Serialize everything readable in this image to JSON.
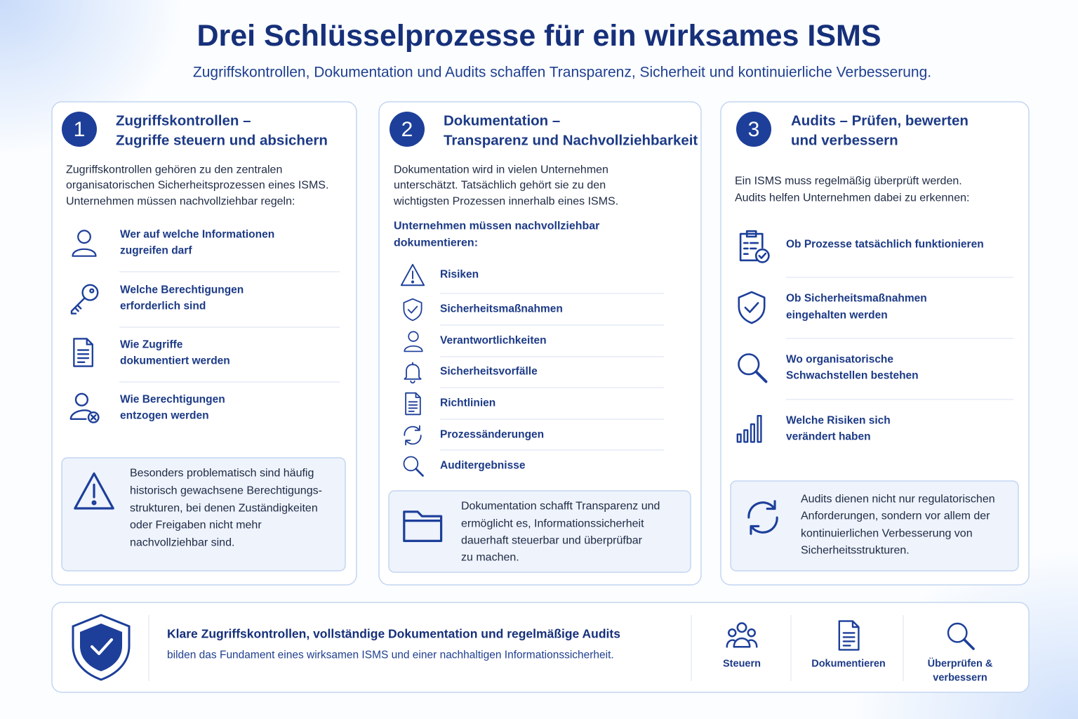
{
  "header": {
    "title": "Drei Schlüsselprozesse für ein wirksames ISMS",
    "subtitle": "Zugriffskontrollen, Dokumentation und Audits schaffen Transparenz, Sicherheit und kontinuierliche Verbesserung."
  },
  "columns": [
    {
      "number": "1",
      "title": [
        "Zugriffskontrollen –",
        "Zugriffe steuern und absichern"
      ],
      "intro": [
        "Zugriffskontrollen gehören zu den zentralen",
        "organisatorischen Sicherheitsprozessen eines ISMS.",
        "Unternehmen müssen nachvollziehbar regeln:"
      ],
      "items": [
        [
          "Wer auf welche Informationen",
          "zugreifen darf"
        ],
        [
          "Welche Berechtigungen",
          "erforderlich sind"
        ],
        [
          "Wie Zugriffe",
          "dokumentiert werden"
        ],
        [
          "Wie Berechtigungen",
          "entzogen werden"
        ]
      ],
      "note": [
        "Besonders problematisch sind häufig",
        "historisch gewachsene Berechtigungs-",
        "strukturen, bei denen Zuständigkeiten",
        "oder Freigaben nicht mehr",
        "nachvollziehbar sind."
      ]
    },
    {
      "number": "2",
      "title": [
        "Dokumentation –",
        "Transparenz und Nachvollziehbarkeit"
      ],
      "intro": [
        "Dokumentation wird in vielen Unternehmen",
        "unterschätzt. Tatsächlich gehört sie zu den",
        "wichtigsten Prozessen innerhalb eines ISMS."
      ],
      "subheading": [
        "Unternehmen müssen nachvollziehbar",
        "dokumentieren:"
      ],
      "items": [
        [
          "Risiken"
        ],
        [
          "Sicherheitsmaßnahmen"
        ],
        [
          "Verantwortlichkeiten"
        ],
        [
          "Sicherheitsvorfälle"
        ],
        [
          "Richtlinien"
        ],
        [
          "Prozessänderungen"
        ],
        [
          "Auditergebnisse"
        ]
      ],
      "note": [
        "Dokumentation schafft Transparenz und",
        "ermöglicht es, Informationssicherheit",
        "dauerhaft steuerbar und überprüfbar",
        "zu machen."
      ]
    },
    {
      "number": "3",
      "title": [
        "Audits – Prüfen, bewerten",
        "und verbessern"
      ],
      "intro": [
        "Ein ISMS muss regelmäßig überprüft werden.",
        "Audits helfen Unternehmen dabei zu erkennen:"
      ],
      "items": [
        [
          "Ob Prozesse tatsächlich funktionieren"
        ],
        [
          "Ob Sicherheitsmaßnahmen",
          "eingehalten werden"
        ],
        [
          "Wo organisatorische",
          "Schwachstellen bestehen"
        ],
        [
          "Welche Risiken sich",
          "verändert haben"
        ]
      ],
      "note": [
        "Audits dienen nicht nur regulatorischen",
        "Anforderungen, sondern vor allem der",
        "kontinuierlichen Verbesserung von",
        "Sicherheitsstrukturen."
      ]
    }
  ],
  "footer": {
    "headline": "Klare Zugriffskontrollen, vollständige Dokumentation und regelmäßige Audits",
    "text": "bilden das Fundament eines wirksamen ISMS und einer nachhaltigen Informationssicherheit.",
    "actions": [
      [
        "Steuern"
      ],
      [
        "Dokumentieren"
      ],
      [
        "Überprüfen &",
        "verbessern"
      ]
    ]
  }
}
